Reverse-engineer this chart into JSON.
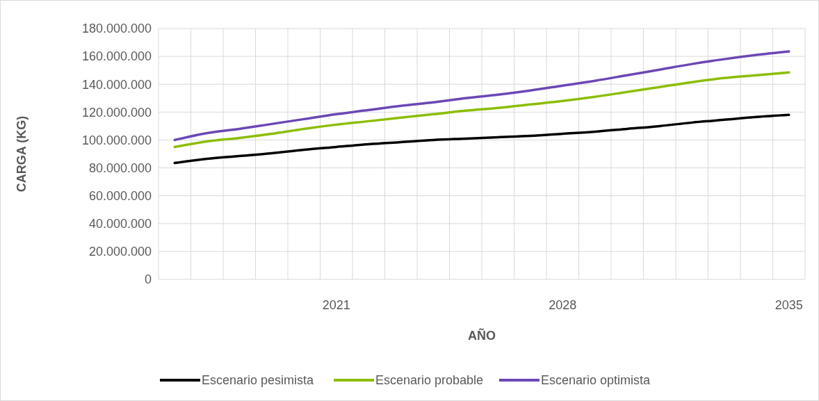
{
  "chart_data": {
    "type": "line",
    "xlabel": "AÑO",
    "ylabel": "CARGA (KG)",
    "categories": [
      null,
      null,
      null,
      null,
      null,
      "2021",
      null,
      null,
      null,
      null,
      null,
      null,
      "2028",
      null,
      null,
      null,
      null,
      null,
      null,
      "2035"
    ],
    "series": [
      {
        "name": "Escenario pesimista",
        "color": "#000000",
        "values": [
          83500000,
          86500000,
          88500000,
          90500000,
          93000000,
          95000000,
          97000000,
          98500000,
          100000000,
          101000000,
          102000000,
          103000000,
          104500000,
          106000000,
          108000000,
          110000000,
          112500000,
          114500000,
          116500000,
          118000000
        ]
      },
      {
        "name": "Escenario probable",
        "color": "#8cbd00",
        "values": [
          95000000,
          99000000,
          101500000,
          104500000,
          108000000,
          111000000,
          113500000,
          116000000,
          118500000,
          121000000,
          123000000,
          125500000,
          128000000,
          131000000,
          134500000,
          138000000,
          141500000,
          144500000,
          146500000,
          148500000
        ]
      },
      {
        "name": "Escenario optimista",
        "color": "#6b47b5",
        "values": [
          100000000,
          105000000,
          108000000,
          111500000,
          115000000,
          118500000,
          121500000,
          124500000,
          127000000,
          130000000,
          132500000,
          135500000,
          139000000,
          142500000,
          146500000,
          150500000,
          154500000,
          158000000,
          161000000,
          163500000
        ]
      }
    ],
    "ylim": [
      0,
      180000000
    ],
    "yticks": [
      0,
      {
        "value": 20000000,
        "label": "20.000.000"
      },
      {
        "value": 40000000,
        "label": "40.000.000"
      },
      {
        "value": 60000000,
        "label": "60.000.000"
      },
      {
        "value": 80000000,
        "label": "80.000.000"
      },
      {
        "value": 100000000,
        "label": "100.000.000"
      },
      {
        "value": 120000000,
        "label": "120.000.000"
      },
      {
        "value": 140000000,
        "label": "140.000.000"
      },
      {
        "value": 160000000,
        "label": "160.000.000"
      },
      {
        "value": 180000000,
        "label": "180.000.000"
      }
    ],
    "grid": true,
    "legend": "bottom",
    "marker": "none",
    "line_style": "solid"
  }
}
